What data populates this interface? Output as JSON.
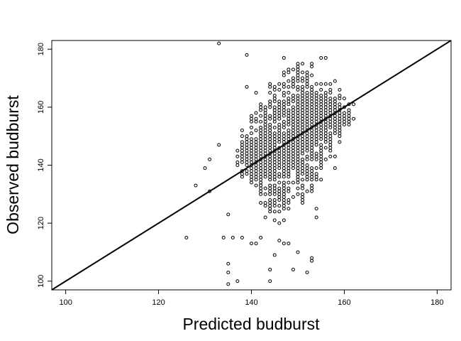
{
  "chart_data": {
    "type": "scatter",
    "title": "",
    "xlabel": "Predicted budburst",
    "ylabel": "Observed budburst",
    "xlim": [
      97,
      183
    ],
    "ylim": [
      97,
      183
    ],
    "xticks": [
      100,
      120,
      140,
      160,
      180
    ],
    "yticks": [
      100,
      120,
      140,
      160,
      180
    ],
    "grid": false,
    "legend": "none",
    "marker": "open-circle",
    "reference_line": {
      "type": "1:1",
      "intercept": 0,
      "slope": 1
    },
    "colors": {
      "points": "#000000",
      "line": "#000000",
      "background": "#ffffff"
    },
    "outliers": [
      [
        133,
        182
      ],
      [
        139,
        178
      ],
      [
        147,
        177
      ],
      [
        155,
        177
      ],
      [
        156,
        177
      ],
      [
        126,
        115
      ],
      [
        134,
        115
      ],
      [
        136,
        115
      ],
      [
        138,
        115
      ],
      [
        142,
        115
      ],
      [
        140,
        113
      ],
      [
        141,
        113
      ],
      [
        146,
        114
      ],
      [
        147,
        113
      ],
      [
        148,
        113
      ],
      [
        145,
        109
      ],
      [
        150,
        110
      ],
      [
        153,
        108
      ],
      [
        153,
        107
      ],
      [
        149,
        104
      ],
      [
        135,
        106
      ],
      [
        135,
        103
      ],
      [
        135,
        99
      ],
      [
        137,
        100
      ],
      [
        144,
        104
      ],
      [
        144,
        100
      ],
      [
        152,
        103
      ],
      [
        145,
        121
      ],
      [
        146,
        120
      ],
      [
        147,
        121
      ],
      [
        143,
        122
      ],
      [
        154,
        125
      ],
      [
        154,
        122
      ],
      [
        135,
        123
      ],
      [
        131,
        131
      ],
      [
        128,
        133
      ],
      [
        130,
        139
      ],
      [
        131,
        142
      ],
      [
        133,
        147
      ],
      [
        158,
        143
      ],
      [
        158,
        139
      ],
      [
        162,
        161
      ],
      [
        162,
        156
      ],
      [
        159,
        156
      ],
      [
        159,
        153
      ],
      [
        158,
        169
      ],
      [
        159,
        166
      ],
      [
        160,
        163
      ],
      [
        141,
        165
      ],
      [
        139,
        167
      ]
    ],
    "bulk": [
      {
        "x": [
          137,
          139
        ],
        "y": [
          139,
          145
        ]
      },
      {
        "x": [
          138,
          141
        ],
        "y": [
          134,
          152
        ]
      },
      {
        "x": [
          140,
          143
        ],
        "y": [
          130,
          158
        ]
      },
      {
        "x": [
          142,
          145
        ],
        "y": [
          126,
          163
        ]
      },
      {
        "x": [
          144,
          148
        ],
        "y": [
          124,
          168
        ]
      },
      {
        "x": [
          147,
          151
        ],
        "y": [
          126,
          173
        ]
      },
      {
        "x": [
          150,
          153
        ],
        "y": [
          130,
          175
        ]
      },
      {
        "x": [
          152,
          155
        ],
        "y": [
          135,
          171
        ]
      },
      {
        "x": [
          154,
          157
        ],
        "y": [
          141,
          168
        ]
      },
      {
        "x": [
          156,
          159
        ],
        "y": [
          148,
          165
        ]
      },
      {
        "x": [
          158,
          161
        ],
        "y": [
          153,
          162
        ]
      }
    ]
  }
}
